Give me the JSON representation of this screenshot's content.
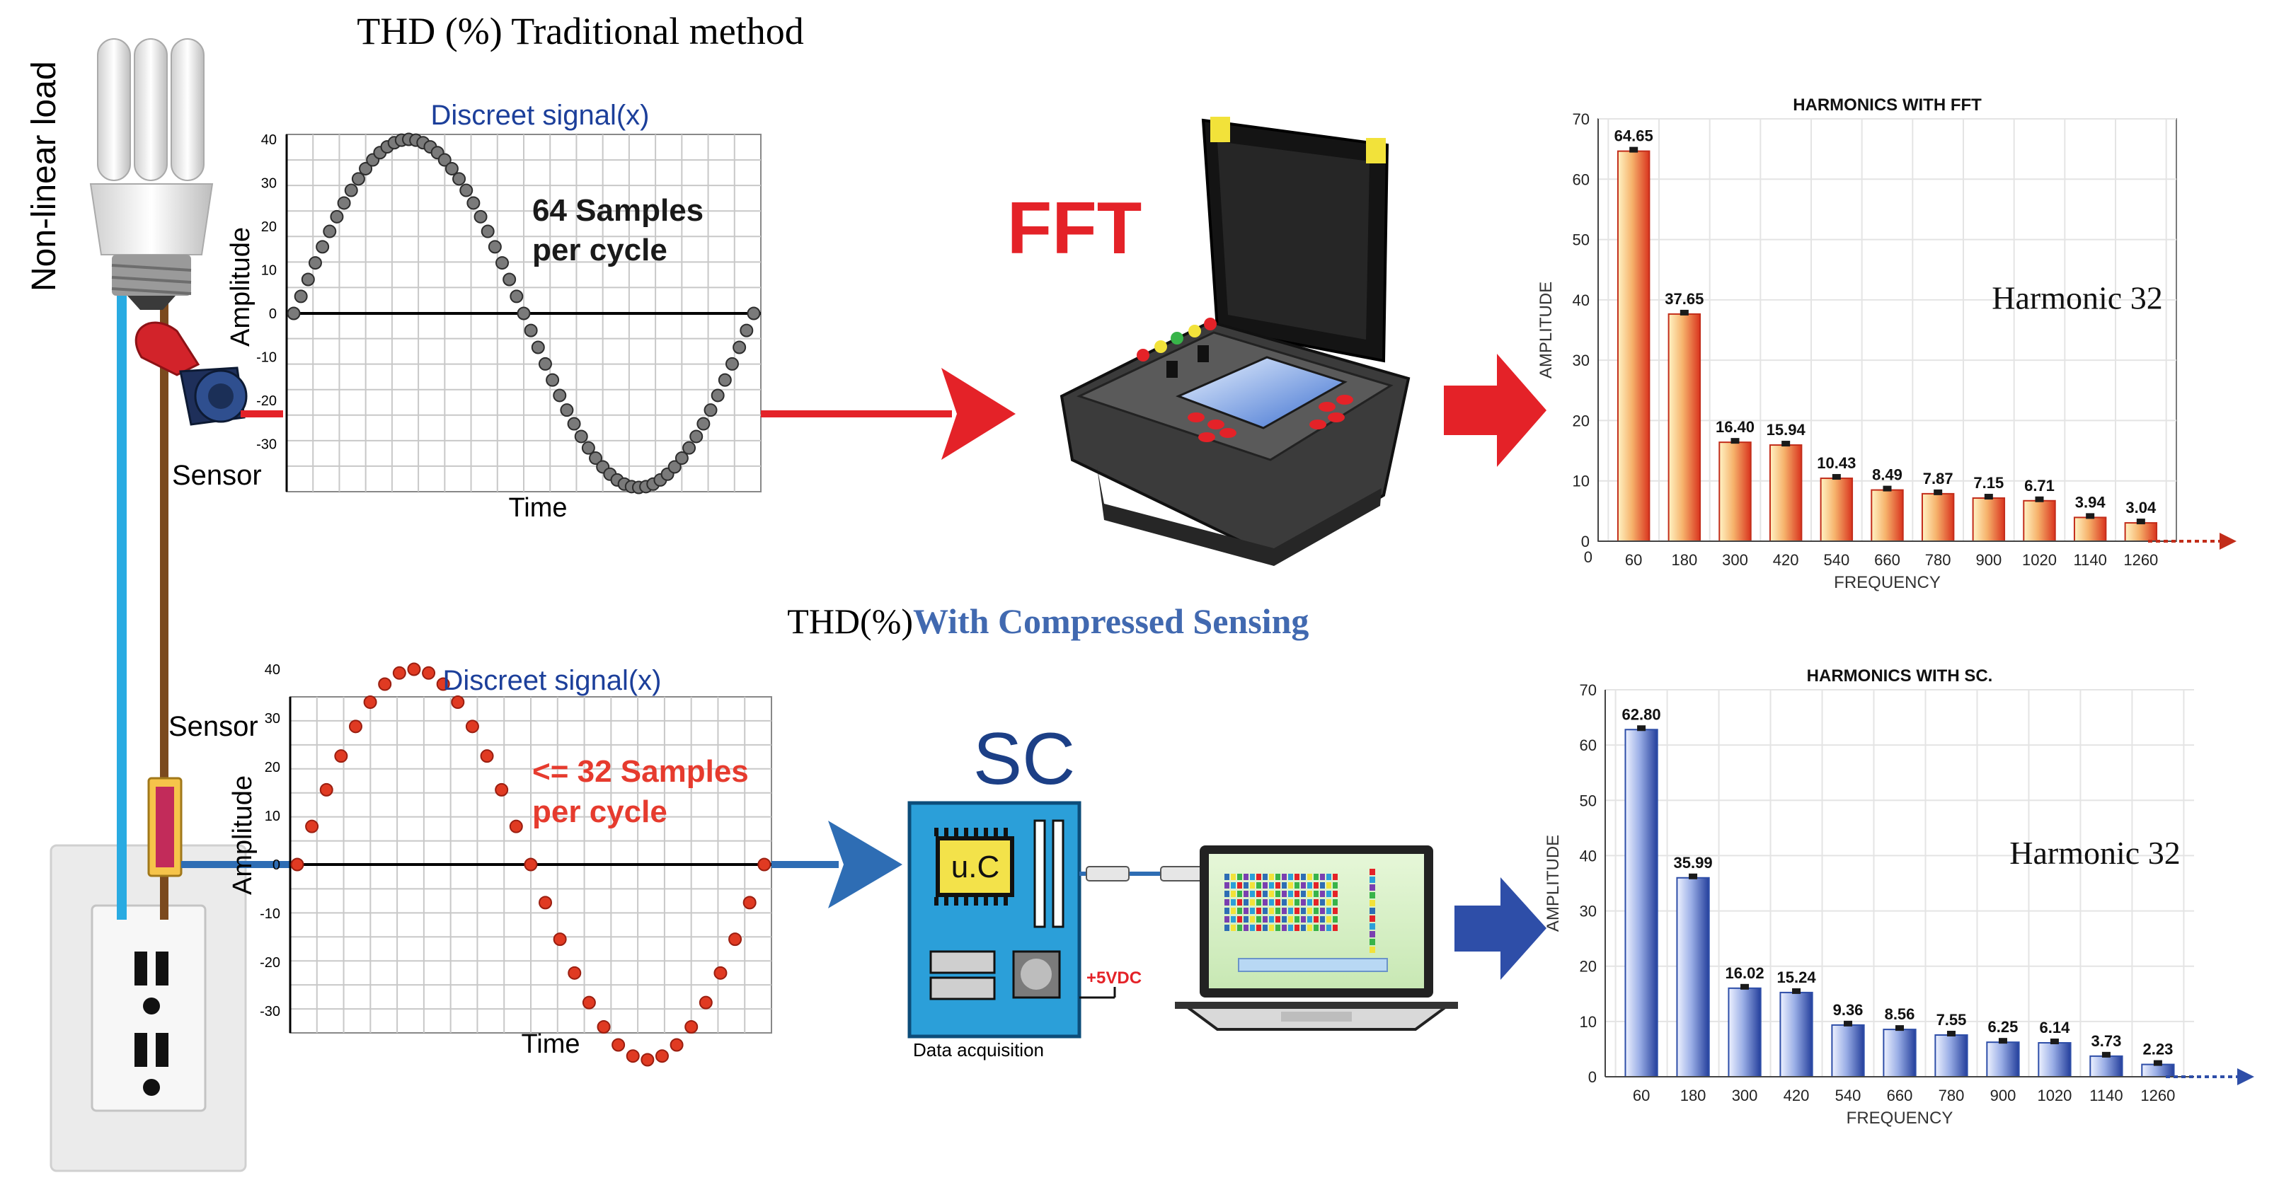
{
  "titles": {
    "top": "THD (%) Traditional method",
    "bottom_prefix": "THD(%) ",
    "bottom_emph": "With Compressed Sensing"
  },
  "load_label": "Non-linear load",
  "sensor_label_top": "Sensor",
  "sensor_label_bottom": "Sensor",
  "signal_top": {
    "title": "Discreet signal(x)",
    "samples_line1": "64 Samples",
    "samples_line2": "per cycle",
    "ylabel": "Amplitude",
    "xlabel": "Time",
    "yticks": [
      "40",
      "30",
      "20",
      "10",
      "0",
      "-10",
      "-20",
      "-30"
    ],
    "samples": 64
  },
  "signal_bottom": {
    "title": "Discreet signal(x)",
    "samples_line1": "<= 32 Samples",
    "samples_line2": "per cycle",
    "ylabel": "Amplitude",
    "xlabel": "Time",
    "yticks": [
      "40",
      "30",
      "20",
      "10",
      "0",
      "-10",
      "-20",
      "-30"
    ],
    "samples": 32
  },
  "fft_label": "FFT",
  "sc_label": "SC",
  "uc_label": "u.C",
  "vdc_label": "+5VDC",
  "daq_label": "Data acquisition",
  "colors": {
    "fft_red": "#e42228",
    "sc_blue": "#2e6db4",
    "sc_text": "#1c3f86",
    "title_blue": "#4169b0",
    "samples_red": "#e63b2e",
    "wire_blue": "#29abe2",
    "wire_brown": "#7b4a1e"
  },
  "chart_data": [
    {
      "type": "bar",
      "title": "HARMONICS WITH FFT",
      "xlabel": "FREQUENCY",
      "ylabel": "AMPLITUDE",
      "annotation": "Harmonic 32",
      "categories": [
        "60",
        "180",
        "300",
        "420",
        "540",
        "660",
        "780",
        "900",
        "1020",
        "1140",
        "1260"
      ],
      "values": [
        64.65,
        37.65,
        16.4,
        15.94,
        10.43,
        8.49,
        7.87,
        7.15,
        6.71,
        3.94,
        3.04
      ],
      "value_labels": [
        "64.65",
        "37.65",
        "16.40",
        "15.94",
        "10.43",
        "8.49",
        "7.87",
        "7.15",
        "6.71",
        "3.94",
        "3.04"
      ],
      "ylim": [
        0,
        70
      ],
      "yticks": [
        "0",
        "10",
        "20",
        "30",
        "40",
        "50",
        "60",
        "70"
      ],
      "x_origin_label": "0",
      "grid": true,
      "color": "#e0542a"
    },
    {
      "type": "bar",
      "title": "HARMONICS WITH SC.",
      "xlabel": "FREQUENCY",
      "ylabel": "AMPLITUDE",
      "annotation": "Harmonic 32",
      "categories": [
        "60",
        "180",
        "300",
        "420",
        "540",
        "660",
        "780",
        "900",
        "1020",
        "1140",
        "1260"
      ],
      "values": [
        62.8,
        35.99,
        16.02,
        15.24,
        9.36,
        8.56,
        7.55,
        6.25,
        6.14,
        3.73,
        2.23
      ],
      "value_labels": [
        "62.80",
        "35.99",
        "16.02",
        "15.24",
        "9.36",
        "8.56",
        "7.55",
        "6.25",
        "6.14",
        "3.73",
        "2.23"
      ],
      "ylim": [
        0,
        70
      ],
      "yticks": [
        "0",
        "10",
        "20",
        "30",
        "40",
        "50",
        "60",
        "70"
      ],
      "grid": true,
      "color": "#2e4ea8"
    }
  ]
}
